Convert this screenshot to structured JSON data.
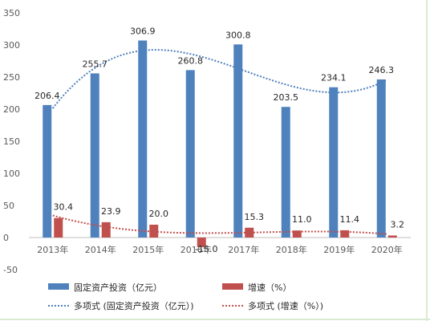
{
  "chart_data": {
    "type": "bar",
    "categories": [
      "2013年",
      "2014年",
      "2015年",
      "2016年",
      "2017年",
      "2018年",
      "2019年",
      "2020年"
    ],
    "series": [
      {
        "name": "固定资产投资（亿元）",
        "values": [
          206.4,
          255.7,
          306.9,
          260.8,
          300.8,
          203.5,
          234.1,
          246.3
        ],
        "labels": [
          "206.4",
          "255.7",
          "306.9",
          "260.8",
          "300.8",
          "203.5",
          "234.1",
          "246.3"
        ],
        "color": "#4f81bd"
      },
      {
        "name": "增速（%）",
        "values": [
          30.4,
          23.9,
          20.0,
          -15.0,
          15.3,
          11.0,
          11.4,
          3.2
        ],
        "labels": [
          "30.4",
          "23.9",
          "20.0",
          "-15.0",
          "15.3",
          "11.0",
          "11.4",
          "3.2"
        ],
        "color": "#c0504d"
      }
    ],
    "trendlines": [
      {
        "name": "多项式 (固定资产投资（亿元）)",
        "series_index": 0,
        "style": "dotted",
        "color": "#4f81bd"
      },
      {
        "name": "多项式 (增速（%）)",
        "series_index": 1,
        "style": "dotted",
        "color": "#c0504d"
      }
    ],
    "yticks": [
      "-50",
      "0",
      "50",
      "100",
      "150",
      "200",
      "250",
      "300",
      "350"
    ],
    "ylim": [
      -50,
      350
    ],
    "grid": false,
    "legend": "bottom",
    "title": "",
    "xlabel": "",
    "ylabel": ""
  }
}
